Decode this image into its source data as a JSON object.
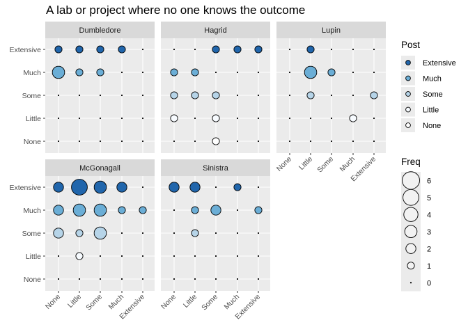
{
  "chart_data": {
    "type": "scatter",
    "title": "A lab or project where no one knows the outcome",
    "x_categories": [
      "None",
      "Little",
      "Some",
      "Much",
      "Extensive"
    ],
    "y_categories": [
      "None",
      "Little",
      "Some",
      "Much",
      "Extensive"
    ],
    "fill_legend": {
      "title": "Post",
      "entries": [
        {
          "label": "Extensive",
          "color": "#2166ac"
        },
        {
          "label": "Much",
          "color": "#6baed6"
        },
        {
          "label": "Some",
          "color": "#b6d4e8"
        },
        {
          "label": "Little",
          "color": "#f7fbff"
        },
        {
          "label": "None",
          "color": "#ffffff"
        }
      ]
    },
    "size_legend": {
      "title": "Freq",
      "values": [
        6,
        5,
        4,
        3,
        2,
        1,
        0
      ]
    },
    "panels": [
      {
        "name": "Dumbledore",
        "freq": {
          "Extensive": [
            1,
            1,
            1,
            1,
            0
          ],
          "Much": [
            3,
            1,
            1,
            0,
            0
          ],
          "Some": [
            0,
            0,
            0,
            0,
            0
          ],
          "Little": [
            0,
            0,
            0,
            0,
            0
          ],
          "None": [
            0,
            0,
            0,
            0,
            0
          ]
        }
      },
      {
        "name": "Hagrid",
        "freq": {
          "Extensive": [
            0,
            0,
            1,
            1,
            1
          ],
          "Much": [
            1,
            1,
            0,
            0,
            0
          ],
          "Some": [
            1,
            1,
            1,
            0,
            0
          ],
          "Little": [
            1,
            0,
            1,
            0,
            0
          ],
          "None": [
            0,
            0,
            1,
            0,
            0
          ]
        }
      },
      {
        "name": "Lupin",
        "freq": {
          "Extensive": [
            0,
            1,
            0,
            0,
            0
          ],
          "Much": [
            0,
            3,
            1,
            0,
            0
          ],
          "Some": [
            0,
            1,
            0,
            0,
            1
          ],
          "Little": [
            0,
            0,
            0,
            1,
            0
          ],
          "None": [
            0,
            0,
            0,
            0,
            0
          ]
        }
      },
      {
        "name": "McGonagall",
        "freq": {
          "Extensive": [
            2,
            5,
            3,
            2,
            0
          ],
          "Much": [
            2,
            3,
            3,
            1,
            1
          ],
          "Some": [
            2,
            1,
            3,
            0,
            0
          ],
          "Little": [
            0,
            1,
            0,
            0,
            0
          ],
          "None": [
            0,
            0,
            0,
            0,
            0
          ]
        }
      },
      {
        "name": "Sinistra",
        "freq": {
          "Extensive": [
            2,
            2,
            0,
            1,
            0
          ],
          "Much": [
            0,
            1,
            2,
            0,
            1
          ],
          "Some": [
            0,
            1,
            0,
            0,
            0
          ],
          "Little": [
            0,
            0,
            0,
            0,
            0
          ],
          "None": [
            0,
            0,
            0,
            0,
            0
          ]
        }
      }
    ]
  }
}
